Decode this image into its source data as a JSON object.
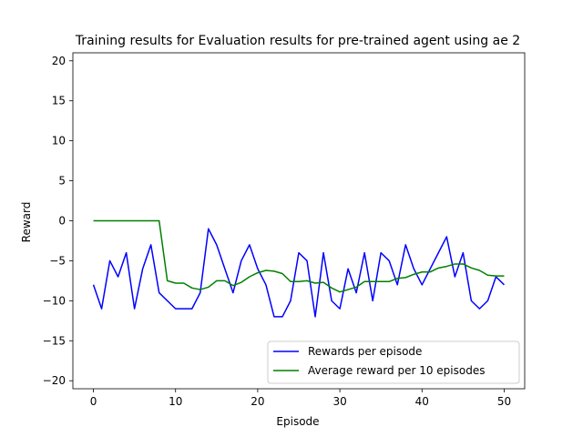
{
  "chart_data": {
    "type": "line",
    "title": "Training results for Evaluation results for pre-trained agent using ae 2",
    "xlabel": "Episode",
    "ylabel": "Reward",
    "xlim": [
      -2.5,
      52.5
    ],
    "ylim": [
      -21,
      21
    ],
    "xticks": [
      0,
      10,
      20,
      30,
      40,
      50
    ],
    "yticks": [
      -20,
      -15,
      -10,
      -5,
      0,
      5,
      10,
      15,
      20
    ],
    "grid": false,
    "legend_position": "lower-right",
    "x": [
      0,
      1,
      2,
      3,
      4,
      5,
      6,
      7,
      8,
      9,
      10,
      11,
      12,
      13,
      14,
      15,
      16,
      17,
      18,
      19,
      20,
      21,
      22,
      23,
      24,
      25,
      26,
      27,
      28,
      29,
      30,
      31,
      32,
      33,
      34,
      35,
      36,
      37,
      38,
      39,
      40,
      41,
      42,
      43,
      44,
      45,
      46,
      47,
      48,
      49,
      50
    ],
    "series": [
      {
        "name": "Rewards per episode",
        "color": "#0000ff",
        "values": [
          -8,
          -11,
          -5,
          -7,
          -4,
          -11,
          -6,
          -3,
          -9,
          -10,
          -11,
          -11,
          -11,
          -9,
          -1,
          -3,
          -6,
          -9,
          -5,
          -3,
          -6,
          -8,
          -12,
          -12,
          -10,
          -4,
          -5,
          -12,
          -4,
          -10,
          -11,
          -6,
          -9,
          -4,
          -10,
          -4,
          -5,
          -8,
          -3,
          -6,
          -8,
          -6,
          -4,
          -2,
          -7,
          -4,
          -10,
          -11,
          -10,
          -7,
          -8
        ]
      },
      {
        "name": "Average reward per 10 episodes",
        "color": "#008000",
        "values": [
          0,
          0,
          0,
          0,
          0,
          0,
          0,
          0,
          0,
          -7.5,
          -7.8,
          -7.8,
          -8.4,
          -8.6,
          -8.3,
          -7.5,
          -7.5,
          -8.1,
          -7.7,
          -7.0,
          -6.5,
          -6.2,
          -6.3,
          -6.6,
          -7.6,
          -7.6,
          -7.5,
          -7.8,
          -7.7,
          -8.4,
          -8.9,
          -8.6,
          -8.3,
          -7.6,
          -7.6,
          -7.6,
          -7.6,
          -7.2,
          -7.1,
          -6.7,
          -6.4,
          -6.4,
          -5.9,
          -5.7,
          -5.4,
          -5.4,
          -5.9,
          -6.2,
          -6.8,
          -6.9,
          -6.9
        ]
      }
    ]
  }
}
